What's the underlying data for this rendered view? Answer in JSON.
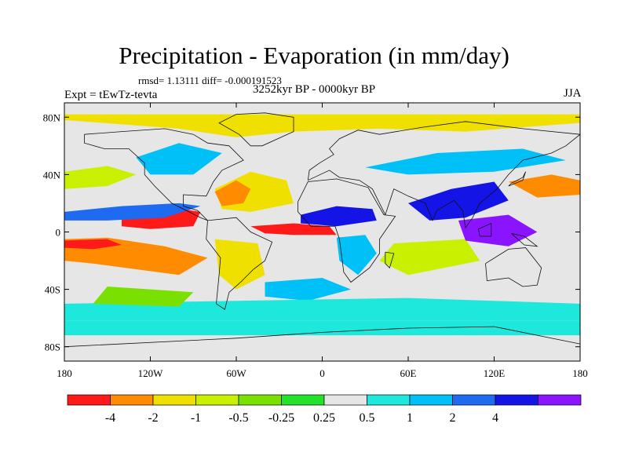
{
  "chart_data": {
    "type": "heatmap",
    "title": "Precipitation - Evaporation (in mm/day)",
    "stats_text": "rmsd= 1.13111 diff= -0.000191523",
    "period": "3252kyr BP - 0000kyr BP",
    "experiment": "Expt = tEwTz-tevta",
    "season": "JJA",
    "x_ticks": [
      "180",
      "120W",
      "60W",
      "0",
      "60E",
      "120E",
      "180"
    ],
    "y_ticks": [
      "80N",
      "40N",
      "0",
      "40S",
      "80S"
    ],
    "lon_range": [
      -180,
      180
    ],
    "lat_range": [
      -90,
      90
    ],
    "colorbar": {
      "labels": [
        "-4",
        "-2",
        "-1",
        "-0.5",
        "-0.25",
        "0.25",
        "0.5",
        "1",
        "2",
        "4"
      ],
      "colors": [
        "#ff1a1a",
        "#ff8c00",
        "#f0e000",
        "#c8f000",
        "#7ae000",
        "#22e22c",
        "#e6e6e6",
        "#1ee8dc",
        "#00c0f8",
        "#1e6af0",
        "#1414e6",
        "#8a14ff"
      ]
    },
    "regions": [
      {
        "name": "arctic-dry",
        "level": 2,
        "points": [
          [
            -180,
            78
          ],
          [
            -100,
            72
          ],
          [
            -60,
            66
          ],
          [
            -20,
            70
          ],
          [
            40,
            72
          ],
          [
            100,
            70
          ],
          [
            180,
            76
          ],
          [
            180,
            82
          ],
          [
            -180,
            82
          ]
        ]
      },
      {
        "name": "north-pacific-dry",
        "level": 3,
        "points": [
          [
            -180,
            42
          ],
          [
            -150,
            46
          ],
          [
            -130,
            40
          ],
          [
            -150,
            32
          ],
          [
            -180,
            30
          ]
        ]
      },
      {
        "name": "north-atlantic-dry",
        "level": 2,
        "points": [
          [
            -75,
            30
          ],
          [
            -50,
            42
          ],
          [
            -25,
            36
          ],
          [
            -20,
            20
          ],
          [
            -50,
            14
          ],
          [
            -70,
            16
          ]
        ]
      },
      {
        "name": "caribbean-drying",
        "level": 1,
        "points": [
          [
            -75,
            28
          ],
          [
            -60,
            36
          ],
          [
            -50,
            30
          ],
          [
            -55,
            20
          ],
          [
            -70,
            18
          ]
        ]
      },
      {
        "name": "east-pacific-itcz-dry",
        "level": 0,
        "points": [
          [
            -140,
            10
          ],
          [
            -110,
            18
          ],
          [
            -85,
            14
          ],
          [
            -90,
            4
          ],
          [
            -120,
            2
          ],
          [
            -140,
            4
          ]
        ]
      },
      {
        "name": "atlantic-itcz-dry",
        "level": 0,
        "points": [
          [
            -50,
            4
          ],
          [
            -20,
            6
          ],
          [
            5,
            4
          ],
          [
            10,
            -2
          ],
          [
            -20,
            -2
          ],
          [
            -40,
            -1
          ]
        ]
      },
      {
        "name": "tropical-pacific-wet",
        "level": 9,
        "points": [
          [
            -180,
            14
          ],
          [
            -140,
            18
          ],
          [
            -100,
            20
          ],
          [
            -85,
            18
          ],
          [
            -110,
            10
          ],
          [
            -150,
            8
          ],
          [
            -180,
            8
          ]
        ]
      },
      {
        "name": "south-pacific-dry",
        "level": 1,
        "points": [
          [
            -180,
            -5
          ],
          [
            -150,
            -4
          ],
          [
            -110,
            -10
          ],
          [
            -80,
            -18
          ],
          [
            -100,
            -30
          ],
          [
            -160,
            -22
          ],
          [
            -180,
            -20
          ]
        ]
      },
      {
        "name": "south-pacific-red",
        "level": 0,
        "points": [
          [
            -180,
            -6
          ],
          [
            -150,
            -5
          ],
          [
            -140,
            -9
          ],
          [
            -160,
            -12
          ],
          [
            -180,
            -11
          ]
        ]
      },
      {
        "name": "south-america-dry",
        "level": 2,
        "points": [
          [
            -75,
            -5
          ],
          [
            -45,
            -8
          ],
          [
            -40,
            -30
          ],
          [
            -60,
            -40
          ],
          [
            -72,
            -30
          ]
        ]
      },
      {
        "name": "south-atlantic-wet",
        "level": 8,
        "points": [
          [
            -40,
            -35
          ],
          [
            0,
            -32
          ],
          [
            20,
            -40
          ],
          [
            -10,
            -48
          ],
          [
            -40,
            -45
          ]
        ]
      },
      {
        "name": "sahel-wet",
        "level": 10,
        "points": [
          [
            -15,
            12
          ],
          [
            10,
            18
          ],
          [
            35,
            16
          ],
          [
            38,
            8
          ],
          [
            10,
            4
          ],
          [
            -15,
            6
          ]
        ]
      },
      {
        "name": "africa-south-wet",
        "level": 8,
        "points": [
          [
            10,
            -4
          ],
          [
            30,
            -2
          ],
          [
            38,
            -15
          ],
          [
            25,
            -30
          ],
          [
            12,
            -20
          ]
        ]
      },
      {
        "name": "indian-ocean-dry",
        "level": 3,
        "points": [
          [
            50,
            -8
          ],
          [
            100,
            -5
          ],
          [
            110,
            -20
          ],
          [
            60,
            -30
          ],
          [
            40,
            -20
          ]
        ]
      },
      {
        "name": "south-asia-wet",
        "level": 10,
        "points": [
          [
            60,
            20
          ],
          [
            90,
            30
          ],
          [
            120,
            35
          ],
          [
            130,
            22
          ],
          [
            100,
            10
          ],
          [
            75,
            8
          ]
        ]
      },
      {
        "name": "indonesia-wet",
        "level": 11,
        "points": [
          [
            95,
            8
          ],
          [
            130,
            12
          ],
          [
            150,
            0
          ],
          [
            130,
            -10
          ],
          [
            100,
            -6
          ]
        ]
      },
      {
        "name": "west-pacific-dry",
        "level": 1,
        "points": [
          [
            130,
            35
          ],
          [
            160,
            40
          ],
          [
            180,
            36
          ],
          [
            180,
            26
          ],
          [
            150,
            24
          ]
        ]
      },
      {
        "name": "eurasia-wet",
        "level": 8,
        "points": [
          [
            30,
            45
          ],
          [
            80,
            55
          ],
          [
            140,
            58
          ],
          [
            170,
            50
          ],
          [
            120,
            42
          ],
          [
            60,
            40
          ]
        ]
      },
      {
        "name": "north-america-wet",
        "level": 8,
        "points": [
          [
            -130,
            52
          ],
          [
            -100,
            62
          ],
          [
            -70,
            55
          ],
          [
            -90,
            40
          ],
          [
            -120,
            40
          ]
        ]
      },
      {
        "name": "southern-ocean-wet",
        "level": 7,
        "points": [
          [
            -180,
            -50
          ],
          [
            -60,
            -48
          ],
          [
            60,
            -46
          ],
          [
            180,
            -50
          ],
          [
            180,
            -62
          ],
          [
            -180,
            -62
          ]
        ]
      },
      {
        "name": "southern-ocean-dry",
        "level": 4,
        "points": [
          [
            -150,
            -38
          ],
          [
            -90,
            -42
          ],
          [
            -100,
            -52
          ],
          [
            -160,
            -50
          ]
        ]
      },
      {
        "name": "antarctic-wet",
        "level": 7,
        "points": [
          [
            -180,
            -62
          ],
          [
            180,
            -62
          ],
          [
            180,
            -72
          ],
          [
            -180,
            -72
          ]
        ]
      }
    ],
    "coastlines": [
      {
        "name": "north-america",
        "points": [
          [
            -166,
            68
          ],
          [
            -140,
            70
          ],
          [
            -110,
            72
          ],
          [
            -90,
            68
          ],
          [
            -80,
            62
          ],
          [
            -65,
            60
          ],
          [
            -55,
            50
          ],
          [
            -70,
            43
          ],
          [
            -76,
            35
          ],
          [
            -81,
            25
          ],
          [
            -97,
            26
          ],
          [
            -97,
            18
          ],
          [
            -87,
            15
          ],
          [
            -80,
            8
          ],
          [
            -85,
            10
          ],
          [
            -105,
            20
          ],
          [
            -117,
            32
          ],
          [
            -124,
            40
          ],
          [
            -124,
            48
          ],
          [
            -135,
            58
          ],
          [
            -152,
            58
          ],
          [
            -166,
            62
          ],
          [
            -166,
            68
          ]
        ]
      },
      {
        "name": "south-america",
        "points": [
          [
            -80,
            8
          ],
          [
            -60,
            10
          ],
          [
            -50,
            0
          ],
          [
            -35,
            -7
          ],
          [
            -40,
            -20
          ],
          [
            -48,
            -26
          ],
          [
            -57,
            -35
          ],
          [
            -65,
            -42
          ],
          [
            -68,
            -54
          ],
          [
            -74,
            -50
          ],
          [
            -72,
            -30
          ],
          [
            -71,
            -18
          ],
          [
            -81,
            -5
          ],
          [
            -80,
            8
          ]
        ]
      },
      {
        "name": "africa",
        "points": [
          [
            -17,
            21
          ],
          [
            -10,
            35
          ],
          [
            10,
            37
          ],
          [
            32,
            31
          ],
          [
            43,
            12
          ],
          [
            51,
            11
          ],
          [
            40,
            -5
          ],
          [
            40,
            -15
          ],
          [
            33,
            -25
          ],
          [
            20,
            -35
          ],
          [
            15,
            -28
          ],
          [
            12,
            -5
          ],
          [
            9,
            4
          ],
          [
            -8,
            4
          ],
          [
            -17,
            14
          ],
          [
            -17,
            21
          ]
        ]
      },
      {
        "name": "eurasia",
        "points": [
          [
            -10,
            36
          ],
          [
            -9,
            43
          ],
          [
            -2,
            48
          ],
          [
            8,
            54
          ],
          [
            5,
            58
          ],
          [
            12,
            65
          ],
          [
            25,
            71
          ],
          [
            40,
            68
          ],
          [
            70,
            73
          ],
          [
            100,
            77
          ],
          [
            140,
            72
          ],
          [
            180,
            68
          ],
          [
            170,
            60
          ],
          [
            160,
            55
          ],
          [
            140,
            50
          ],
          [
            130,
            40
          ],
          [
            122,
            30
          ],
          [
            110,
            20
          ],
          [
            105,
            10
          ],
          [
            100,
            3
          ],
          [
            98,
            15
          ],
          [
            92,
            22
          ],
          [
            80,
            15
          ],
          [
            77,
            8
          ],
          [
            72,
            20
          ],
          [
            60,
            25
          ],
          [
            50,
            30
          ],
          [
            44,
            12
          ],
          [
            35,
            30
          ],
          [
            26,
            36
          ],
          [
            12,
            38
          ],
          [
            5,
            43
          ],
          [
            -10,
            36
          ]
        ]
      },
      {
        "name": "australia",
        "points": [
          [
            114,
            -22
          ],
          [
            130,
            -12
          ],
          [
            142,
            -11
          ],
          [
            153,
            -25
          ],
          [
            150,
            -37
          ],
          [
            140,
            -38
          ],
          [
            130,
            -32
          ],
          [
            115,
            -34
          ],
          [
            114,
            -22
          ]
        ]
      },
      {
        "name": "greenland",
        "points": [
          [
            -50,
            60
          ],
          [
            -42,
            60
          ],
          [
            -20,
            70
          ],
          [
            -20,
            80
          ],
          [
            -40,
            83
          ],
          [
            -60,
            82
          ],
          [
            -72,
            76
          ],
          [
            -58,
            68
          ],
          [
            -50,
            60
          ]
        ]
      },
      {
        "name": "antarctica",
        "points": [
          [
            -180,
            -80
          ],
          [
            -60,
            -74
          ],
          [
            0,
            -70
          ],
          [
            60,
            -67
          ],
          [
            120,
            -66
          ],
          [
            180,
            -78
          ]
        ]
      },
      {
        "name": "madagascar",
        "points": [
          [
            44,
            -14
          ],
          [
            50,
            -15
          ],
          [
            47,
            -25
          ],
          [
            44,
            -22
          ],
          [
            44,
            -14
          ]
        ]
      },
      {
        "name": "japan",
        "points": [
          [
            130,
            32
          ],
          [
            140,
            36
          ],
          [
            142,
            42
          ],
          [
            140,
            38
          ],
          [
            132,
            34
          ],
          [
            130,
            32
          ]
        ]
      },
      {
        "name": "borneo",
        "points": [
          [
            109,
            2
          ],
          [
            118,
            6
          ],
          [
            118,
            -3
          ],
          [
            110,
            -3
          ],
          [
            109,
            2
          ]
        ]
      },
      {
        "name": "new-guinea",
        "points": [
          [
            132,
            -1
          ],
          [
            141,
            -3
          ],
          [
            150,
            -10
          ],
          [
            141,
            -9
          ],
          [
            132,
            -1
          ]
        ]
      }
    ]
  }
}
